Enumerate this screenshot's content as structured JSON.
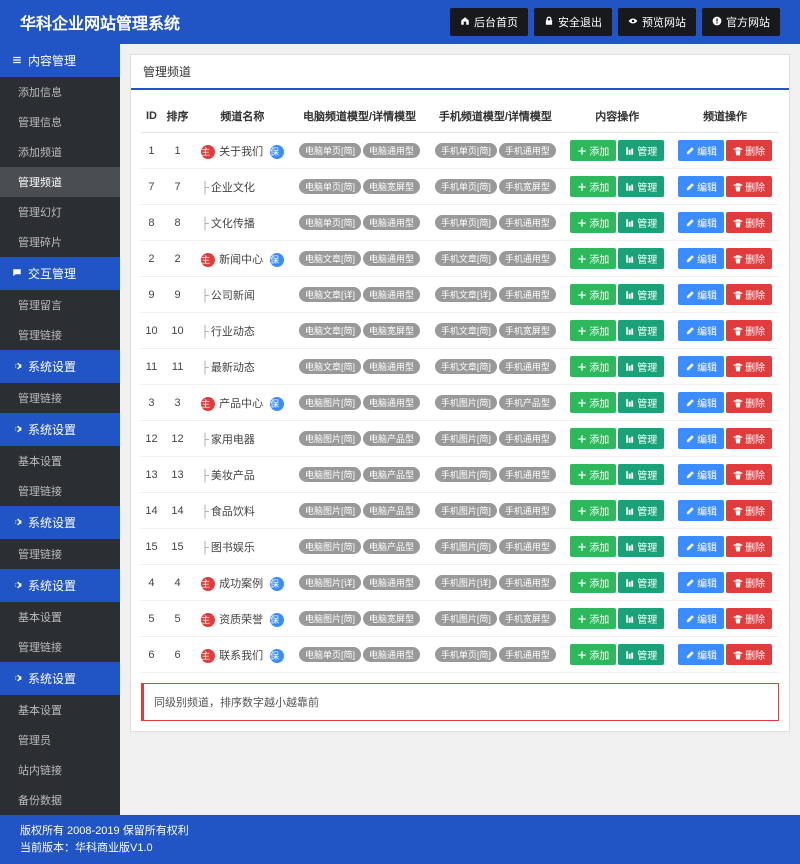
{
  "header": {
    "title": "华科企业网站管理系统",
    "nav": [
      {
        "icon": "home",
        "label": "后台首页"
      },
      {
        "icon": "lock",
        "label": "安全退出"
      },
      {
        "icon": "eye",
        "label": "预览网站"
      },
      {
        "icon": "help",
        "label": "官方网站"
      }
    ]
  },
  "sidebar": [
    {
      "type": "group",
      "label": "内容管理",
      "icon": "list"
    },
    {
      "type": "item",
      "label": "添加信息"
    },
    {
      "type": "item",
      "label": "管理信息"
    },
    {
      "type": "item",
      "label": "添加频道"
    },
    {
      "type": "item",
      "label": "管理频道",
      "active": true
    },
    {
      "type": "item",
      "label": "管理幻灯"
    },
    {
      "type": "item",
      "label": "管理碎片"
    },
    {
      "type": "group",
      "label": "交互管理",
      "icon": "chat"
    },
    {
      "type": "item",
      "label": "管理留言"
    },
    {
      "type": "item",
      "label": "管理链接"
    },
    {
      "type": "group",
      "label": "系统设置",
      "icon": "gear"
    },
    {
      "type": "item",
      "label": "管理链接"
    },
    {
      "type": "group",
      "label": "系统设置",
      "icon": "gear"
    },
    {
      "type": "item",
      "label": "基本设置"
    },
    {
      "type": "item",
      "label": "管理链接"
    },
    {
      "type": "group",
      "label": "系统设置",
      "icon": "gear"
    },
    {
      "type": "item",
      "label": "管理链接"
    },
    {
      "type": "group",
      "label": "系统设置",
      "icon": "gear"
    },
    {
      "type": "item",
      "label": "基本设置"
    },
    {
      "type": "item",
      "label": "管理链接"
    },
    {
      "type": "group",
      "label": "系统设置",
      "icon": "gear"
    },
    {
      "type": "item",
      "label": "基本设置"
    },
    {
      "type": "item",
      "label": "管理员"
    },
    {
      "type": "item",
      "label": "站内链接"
    },
    {
      "type": "item",
      "label": "备份数据"
    }
  ],
  "panel": {
    "title": "管理频道",
    "columns": [
      "ID",
      "排序",
      "频道名称",
      "电脑频道模型/详情模型",
      "手机频道模型/详情模型",
      "内容操作",
      "频道操作"
    ],
    "note": "同级别频道，排序数字越小越靠前"
  },
  "buttons": {
    "add": "添加",
    "manage": "管理",
    "edit": "编辑",
    "delete": "删除"
  },
  "rows": [
    {
      "id": 1,
      "sort": 1,
      "top": true,
      "name": "关于我们",
      "badge": true,
      "pc": [
        "电脑单页[简]",
        "电脑通用型"
      ],
      "mb": [
        "手机单页[简]",
        "手机通用型"
      ]
    },
    {
      "id": 7,
      "sort": 7,
      "top": false,
      "name": "企业文化",
      "badge": false,
      "pc": [
        "电脑单页[简]",
        "电脑宽屏型"
      ],
      "mb": [
        "手机单页[简]",
        "手机宽屏型"
      ]
    },
    {
      "id": 8,
      "sort": 8,
      "top": false,
      "name": "文化传播",
      "badge": false,
      "pc": [
        "电脑单页[简]",
        "电脑通用型"
      ],
      "mb": [
        "手机单页[简]",
        "手机通用型"
      ]
    },
    {
      "id": 2,
      "sort": 2,
      "top": true,
      "name": "新闻中心",
      "badge": true,
      "pc": [
        "电脑文章[简]",
        "电脑通用型"
      ],
      "mb": [
        "手机文章[简]",
        "手机通用型"
      ]
    },
    {
      "id": 9,
      "sort": 9,
      "top": false,
      "name": "公司新闻",
      "badge": false,
      "pc": [
        "电脑文章[详]",
        "电脑通用型"
      ],
      "mb": [
        "手机文章[详]",
        "手机通用型"
      ]
    },
    {
      "id": 10,
      "sort": 10,
      "top": false,
      "name": "行业动态",
      "badge": false,
      "pc": [
        "电脑文章[简]",
        "电脑宽屏型"
      ],
      "mb": [
        "手机文章[简]",
        "手机宽屏型"
      ]
    },
    {
      "id": 11,
      "sort": 11,
      "top": false,
      "name": "最新动态",
      "badge": false,
      "pc": [
        "电脑文章[简]",
        "电脑通用型"
      ],
      "mb": [
        "手机文章[简]",
        "手机通用型"
      ]
    },
    {
      "id": 3,
      "sort": 3,
      "top": true,
      "name": "产品中心",
      "badge": true,
      "pc": [
        "电脑图片[简]",
        "电脑通用型"
      ],
      "mb": [
        "手机图片[简]",
        "手机产品型"
      ]
    },
    {
      "id": 12,
      "sort": 12,
      "top": false,
      "name": "家用电器",
      "badge": false,
      "pc": [
        "电脑图片[简]",
        "电脑产品型"
      ],
      "mb": [
        "手机图片[简]",
        "手机通用型"
      ]
    },
    {
      "id": 13,
      "sort": 13,
      "top": false,
      "name": "美妆产品",
      "badge": false,
      "pc": [
        "电脑图片[简]",
        "电脑产品型"
      ],
      "mb": [
        "手机图片[简]",
        "手机通用型"
      ]
    },
    {
      "id": 14,
      "sort": 14,
      "top": false,
      "name": "食品饮料",
      "badge": false,
      "pc": [
        "电脑图片[简]",
        "电脑产品型"
      ],
      "mb": [
        "手机图片[简]",
        "手机通用型"
      ]
    },
    {
      "id": 15,
      "sort": 15,
      "top": false,
      "name": "图书娱乐",
      "badge": false,
      "pc": [
        "电脑图片[简]",
        "电脑产品型"
      ],
      "mb": [
        "手机图片[简]",
        "手机通用型"
      ]
    },
    {
      "id": 4,
      "sort": 4,
      "top": true,
      "name": "成功案例",
      "badge": true,
      "pc": [
        "电脑图片[详]",
        "电脑通用型"
      ],
      "mb": [
        "手机图片[详]",
        "手机通用型"
      ]
    },
    {
      "id": 5,
      "sort": 5,
      "top": true,
      "name": "资质荣誉",
      "badge": true,
      "pc": [
        "电脑图片[简]",
        "电脑宽屏型"
      ],
      "mb": [
        "手机图片[简]",
        "手机宽屏型"
      ]
    },
    {
      "id": 6,
      "sort": 6,
      "top": true,
      "name": "联系我们",
      "badge": true,
      "pc": [
        "电脑单页[简]",
        "电脑通用型"
      ],
      "mb": [
        "手机单页[简]",
        "手机通用型"
      ]
    }
  ],
  "footer": {
    "line1": "版权所有 2008-2019 保留所有权利",
    "line2": "当前版本：华科商业版V1.0"
  }
}
